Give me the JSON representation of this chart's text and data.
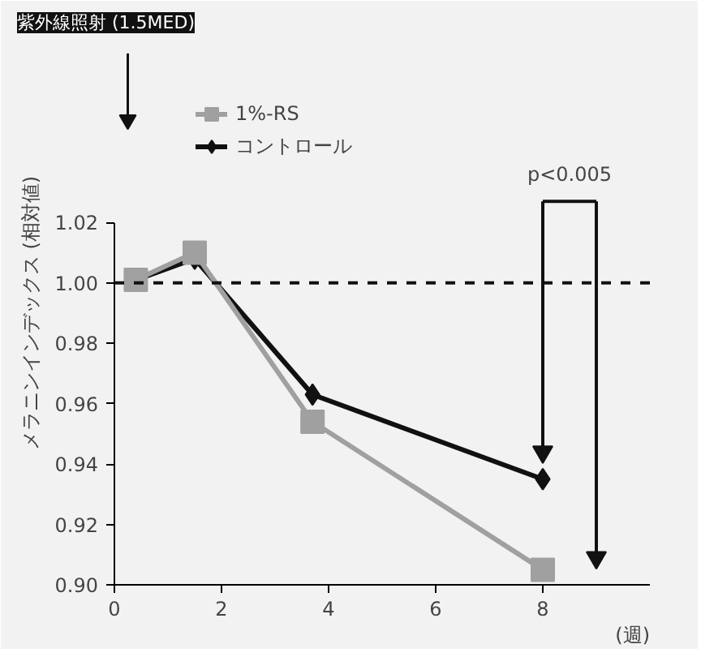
{
  "chart_data": {
    "type": "line",
    "ylabel": "メラニンインデックス (相対値)",
    "xlabel": "(週)",
    "x": [
      0.4,
      1.5,
      3.7,
      8
    ],
    "series": [
      {
        "name": "1%-RS",
        "color": "#a0a0a0",
        "marker": "square",
        "values": [
          1.001,
          1.01,
          0.954,
          0.905
        ]
      },
      {
        "name": "コントロール",
        "color": "#111111",
        "marker": "diamond",
        "values": [
          1.001,
          1.008,
          0.963,
          0.935
        ]
      }
    ],
    "xlim": [
      0,
      10
    ],
    "xticks": [
      0,
      2,
      4,
      6,
      8
    ],
    "ylim": [
      0.9,
      1.08
    ],
    "yticks": [
      {
        "value": 0.9,
        "label": "0.90"
      },
      0.92,
      0.94,
      0.96,
      0.98,
      {
        "value": 1.0,
        "label": "1.00"
      },
      1.02
    ],
    "ref_lines": [
      {
        "axis": "y",
        "value": 1.0,
        "color": "#111111",
        "line_style": "dashed"
      }
    ],
    "annotations": [
      "紫外線照射 (1.5MED)",
      "p<0.005"
    ],
    "legend": "top left",
    "grid": false,
    "line_style": "solid"
  }
}
